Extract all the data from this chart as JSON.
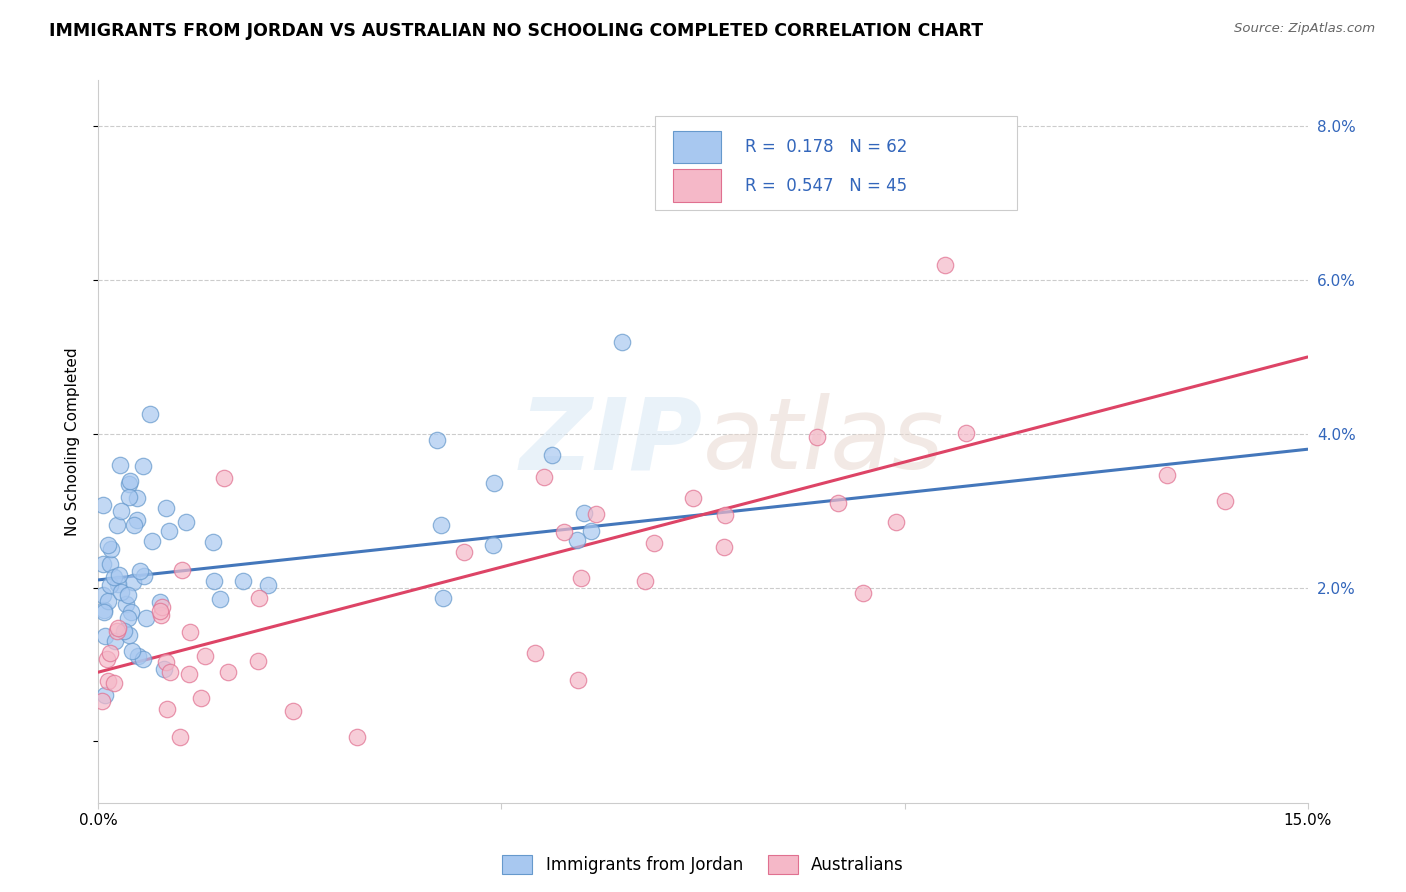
{
  "title": "IMMIGRANTS FROM JORDAN VS AUSTRALIAN NO SCHOOLING COMPLETED CORRELATION CHART",
  "source": "Source: ZipAtlas.com",
  "ylabel": "No Schooling Completed",
  "xlim": [
    0,
    0.15
  ],
  "ylim": [
    -0.008,
    0.086
  ],
  "blue_color": "#A8C8F0",
  "blue_edge_color": "#6699CC",
  "pink_color": "#F5B8C8",
  "pink_edge_color": "#E07090",
  "blue_trend_color": "#4477BB",
  "pink_trend_color": "#DD4466",
  "legend_text_color": "#3366BB",
  "legend_r1": "R =  0.178",
  "legend_n1": "N = 62",
  "legend_r2": "R =  0.547",
  "legend_n2": "N = 45",
  "series1_label": "Immigrants from Jordan",
  "series2_label": "Australians",
  "watermark_zip": "ZIP",
  "watermark_atlas": "atlas",
  "blue_trend_x0": 0.0,
  "blue_trend_x1": 0.15,
  "blue_trend_y0": 0.021,
  "blue_trend_y1": 0.038,
  "pink_trend_x0": 0.0,
  "pink_trend_x1": 0.15,
  "pink_trend_y0": 0.009,
  "pink_trend_y1": 0.05
}
